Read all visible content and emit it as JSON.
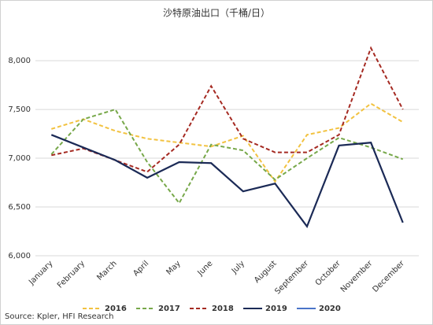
{
  "chart_data": {
    "type": "line",
    "title": "沙特原油出口（千桶/日）",
    "categories": [
      "January",
      "February",
      "March",
      "April",
      "May",
      "June",
      "July",
      "August",
      "September",
      "October",
      "November",
      "December"
    ],
    "series": [
      {
        "name": "2016",
        "color": "#f2c240",
        "dashed": true,
        "values": [
          7300,
          7400,
          7280,
          7200,
          7160,
          7120,
          7230,
          6760,
          7240,
          7310,
          7560,
          7370
        ]
      },
      {
        "name": "2017",
        "color": "#77a84a",
        "dashed": true,
        "values": [
          7040,
          7400,
          7500,
          6960,
          6540,
          7140,
          7080,
          6780,
          7000,
          7210,
          7110,
          6990
        ]
      },
      {
        "name": "2018",
        "color": "#a52a22",
        "dashed": true,
        "values": [
          7030,
          7100,
          6980,
          6860,
          7140,
          7740,
          7200,
          7060,
          7060,
          7240,
          8130,
          7500
        ]
      },
      {
        "name": "2019",
        "color": "#1b2a56",
        "dashed": false,
        "values": [
          7240,
          7110,
          6980,
          6800,
          6960,
          6950,
          6660,
          6740,
          6300,
          7130,
          7160,
          6340
        ]
      },
      {
        "name": "2020",
        "color": "#4a74c8",
        "dashed": false,
        "values": [
          null,
          null,
          null,
          null,
          null,
          null,
          null,
          null,
          null,
          null,
          null,
          null
        ]
      }
    ],
    "ylim": [
      6000,
      8380
    ],
    "yticks": [
      {
        "value": 6000,
        "label": "6,000"
      },
      {
        "value": 6500,
        "label": "6,500"
      },
      {
        "value": 7000,
        "label": "7,000"
      },
      {
        "value": 7500,
        "label": "7,500"
      },
      {
        "value": 8000,
        "label": "8,000"
      }
    ],
    "grid": true,
    "legend": "bottom",
    "source": "Source: Kpler, HFI Research"
  }
}
